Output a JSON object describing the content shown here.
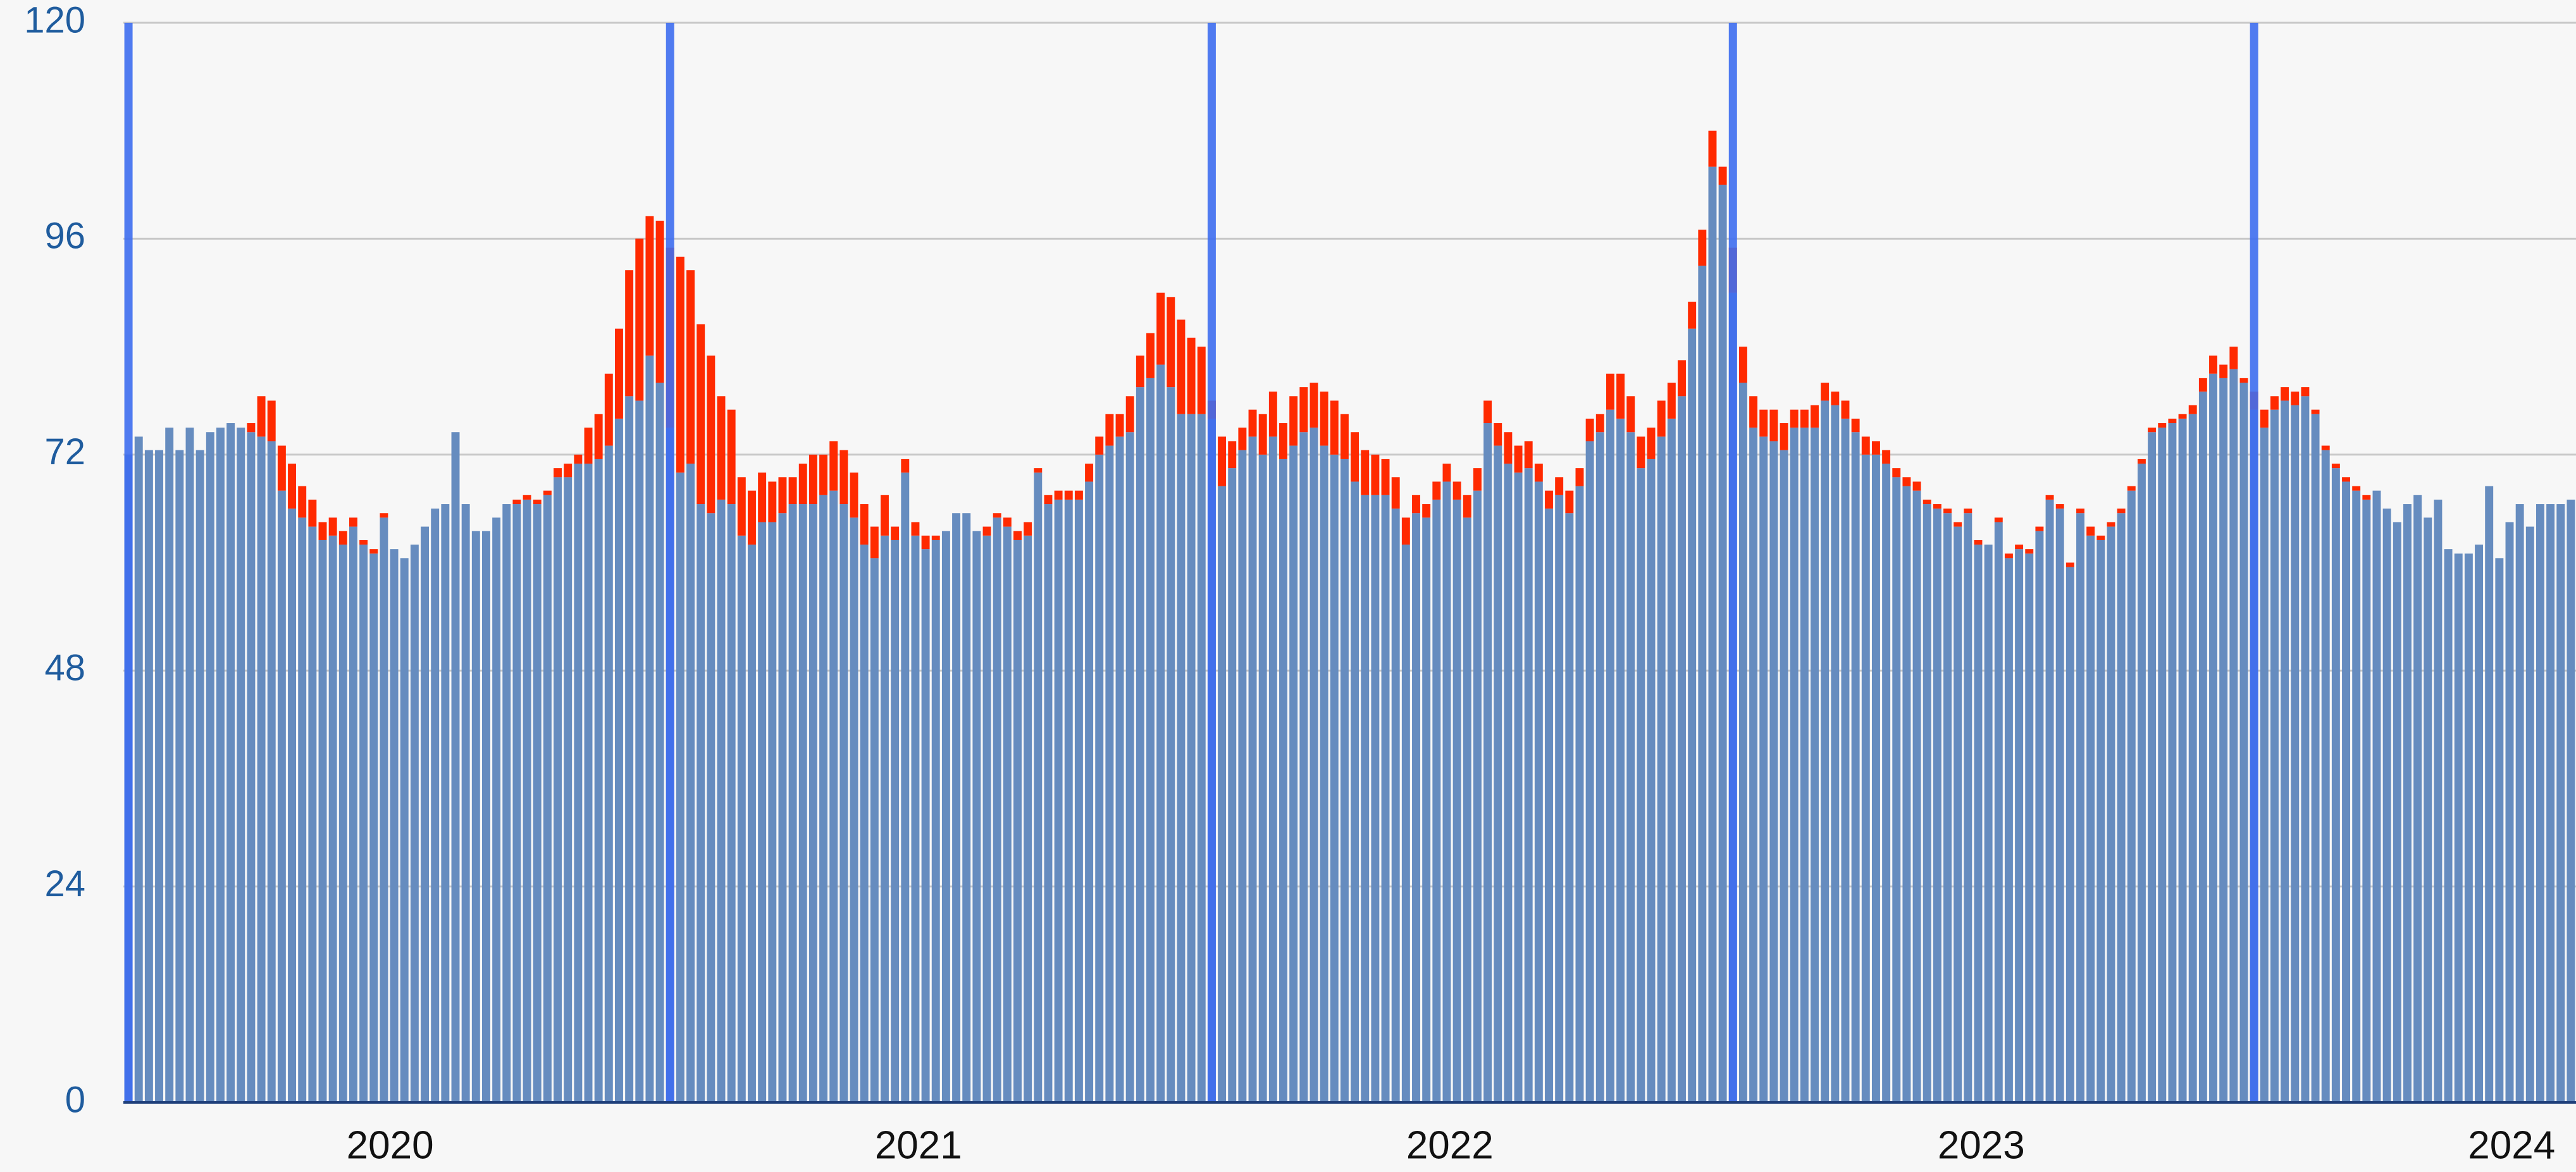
{
  "chart_data": {
    "type": "stacked_bar",
    "ylim": [
      0,
      120
    ],
    "yticks": [
      0,
      24,
      48,
      72,
      96,
      120
    ],
    "grid": true,
    "xticks": [
      {
        "value": 25.6,
        "label": "2020"
      },
      {
        "value": 77.3,
        "label": "2021"
      },
      {
        "value": 129.3,
        "label": "2022"
      },
      {
        "value": 181.3,
        "label": "2023"
      },
      {
        "value": 233.2,
        "label": "2024"
      }
    ],
    "highlight": [
      0,
      53,
      106,
      157,
      208
    ],
    "highlight_color": "#3f6ef0",
    "series": [
      {
        "color": "#668cbf",
        "values": [
          72,
          74,
          72.5,
          72.5,
          75,
          72.5,
          75,
          72.5,
          74.5,
          75,
          75.5,
          75,
          74.5,
          74,
          73.5,
          68,
          66,
          65,
          64,
          62.5,
          63,
          62,
          64,
          62,
          61,
          65,
          61.5,
          60.5,
          62,
          64,
          66,
          66.5,
          74.5,
          66.5,
          63.5,
          63.5,
          65,
          66.5,
          66.5,
          67,
          66.5,
          67.5,
          69.5,
          69.5,
          71,
          71,
          71.5,
          73,
          76,
          78.5,
          78,
          83,
          80,
          75,
          70,
          71,
          66.5,
          65.5,
          67,
          66.5,
          63,
          62,
          64.5,
          64.5,
          65.5,
          66.5,
          66.5,
          66.5,
          67.5,
          68,
          66.5,
          65,
          62,
          60.5,
          63,
          62.5,
          70,
          63,
          61.5,
          62.5,
          63.5,
          65.5,
          65.5,
          63.5,
          63,
          65,
          64,
          62.5,
          63,
          70,
          66.5,
          67,
          67,
          67,
          69,
          72,
          73,
          74,
          74.5,
          79.5,
          80.5,
          82,
          79.5,
          76.5,
          76.5,
          76.5,
          76,
          68.5,
          70.5,
          72.5,
          74,
          72,
          74,
          71.5,
          73,
          74.5,
          75,
          73,
          72,
          71.5,
          69,
          67.5,
          67.5,
          67.5,
          66,
          62,
          65.5,
          65,
          67,
          69,
          67,
          65,
          68,
          75.5,
          73,
          71,
          70,
          70.5,
          69,
          66,
          67.5,
          65.5,
          68.5,
          73.5,
          74.5,
          77,
          76,
          74.5,
          70.5,
          71.5,
          74,
          76,
          78.5,
          86,
          93,
          104,
          102,
          90,
          80,
          75,
          74,
          73.5,
          72.5,
          75,
          75,
          75,
          78,
          77.5,
          76,
          74.5,
          72,
          72,
          71,
          69.5,
          68.5,
          68,
          66.5,
          66,
          65.5,
          64,
          65.5,
          62,
          62,
          64.5,
          60.5,
          61.5,
          61,
          63.5,
          67,
          66,
          59.5,
          65.5,
          63,
          62.5,
          64,
          65.5,
          68,
          71,
          74.5,
          75,
          75.5,
          76,
          76.5,
          79,
          81,
          80.5,
          81.5,
          80,
          77,
          75,
          77,
          78,
          77.5,
          78.5,
          76.5,
          72.5,
          70.5,
          69,
          68,
          67,
          68,
          66,
          64.5,
          66.5,
          67.5,
          65,
          67,
          61.5,
          61,
          61,
          62,
          68.5,
          60.5,
          64.5,
          66.5,
          64,
          66.5,
          66.5,
          66.5,
          67
        ]
      },
      {
        "color": "#ff2a00",
        "values": [
          0,
          0,
          0,
          0,
          0,
          0,
          0,
          0,
          0,
          0,
          0,
          0,
          1,
          4.5,
          4.5,
          5,
          5,
          3.5,
          3,
          2,
          2,
          1.5,
          1,
          0.5,
          0.5,
          0.5,
          0,
          0,
          0,
          0,
          0,
          0,
          0,
          0,
          0,
          0,
          0,
          0,
          0.5,
          0.5,
          0.5,
          0.5,
          1,
          1.5,
          1,
          4,
          5,
          8,
          10,
          14,
          18,
          15.5,
          18,
          20,
          24,
          21.5,
          20,
          17.5,
          11.5,
          10.5,
          6.5,
          6,
          5.5,
          4.5,
          4,
          3,
          4.5,
          5.5,
          4.5,
          5.5,
          6,
          5,
          4.5,
          3.5,
          4.5,
          1.5,
          1.5,
          1.5,
          1.5,
          0.5,
          0,
          0,
          0,
          0,
          1,
          0.5,
          1,
          1,
          1.5,
          0.5,
          1,
          1,
          1,
          1,
          2,
          2,
          3.5,
          2.5,
          4,
          3.5,
          5,
          8,
          10,
          10.5,
          8.5,
          7.5,
          2,
          5.5,
          3,
          2.5,
          3,
          4.5,
          5,
          4,
          5.5,
          5,
          5,
          6,
          6,
          5,
          5.5,
          5,
          4.5,
          4,
          3.5,
          3,
          2,
          1.5,
          2,
          2,
          2,
          2.5,
          2.5,
          2.5,
          2.5,
          3.5,
          3,
          3,
          2,
          2,
          2,
          2.5,
          2,
          2.5,
          2,
          4,
          5,
          4,
          3.5,
          3.5,
          4,
          4,
          4,
          3,
          4,
          4,
          2,
          5,
          4,
          3.5,
          3,
          3.5,
          3,
          2,
          2,
          2.5,
          2,
          1.5,
          2,
          1.5,
          2,
          1.5,
          1.5,
          1,
          1,
          1,
          0.5,
          0.5,
          0.5,
          0.5,
          0.5,
          0.5,
          0,
          0.5,
          0.5,
          0.5,
          0.5,
          0.5,
          0.5,
          0.5,
          0.5,
          0.5,
          1,
          0.5,
          0.5,
          0.5,
          0.5,
          0.5,
          0.5,
          0.5,
          0.5,
          0.5,
          1,
          1.5,
          2,
          1.5,
          2.5,
          0.5,
          2,
          2,
          1.5,
          1.5,
          1.5,
          1,
          0.5,
          0.5,
          0.5,
          0.5,
          0.5,
          0.5,
          0,
          0,
          0,
          0,
          0,
          0,
          0,
          0,
          0,
          0,
          0,
          0,
          0,
          0,
          0,
          0,
          0,
          0,
          0,
          0
        ]
      }
    ]
  }
}
